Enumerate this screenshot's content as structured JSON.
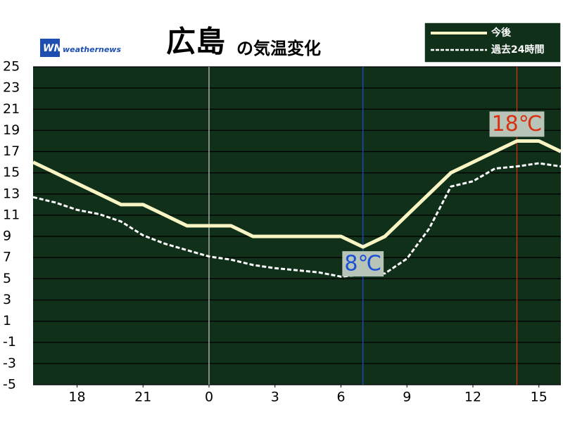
{
  "chart_data": {
    "type": "line",
    "title": "広島",
    "subtitle": "の気温変化",
    "brand": "weathernews",
    "x": [
      16,
      17,
      18,
      19,
      20,
      21,
      22,
      23,
      24,
      25,
      26,
      27,
      28,
      29,
      30,
      31,
      32,
      33,
      34,
      35,
      36,
      37,
      38,
      39,
      40
    ],
    "series": [
      {
        "name": "今後",
        "color": "#f8f4c4",
        "style": "solid",
        "values": [
          16,
          15,
          14,
          13,
          12,
          12,
          11,
          10,
          10,
          10,
          9,
          9,
          9,
          9,
          9,
          8,
          9,
          11,
          13,
          15,
          16,
          17,
          18,
          18,
          17
        ]
      },
      {
        "name": "過去24時間",
        "color": "#ffffff",
        "style": "dashed",
        "values": [
          12.7,
          12.2,
          11.5,
          11.1,
          10.4,
          9.1,
          8.3,
          7.7,
          7.1,
          6.8,
          6.3,
          6.0,
          5.8,
          5.6,
          5.2,
          5.4,
          5.5,
          6.9,
          9.7,
          13.7,
          14.2,
          15.4,
          15.6,
          15.9,
          15.6
        ]
      }
    ],
    "markers": [
      {
        "x": 24,
        "color": "#cccccc"
      },
      {
        "x": 31,
        "color": "#1a4fd8",
        "label": "8℃"
      },
      {
        "x": 38,
        "color": "#d83010",
        "label": "18℃"
      }
    ],
    "xlim": [
      16,
      40
    ],
    "xticks": [
      18,
      21,
      {
        "value": 24,
        "label": "0"
      },
      {
        "value": 27,
        "label": "3"
      },
      {
        "value": 30,
        "label": "6"
      },
      {
        "value": 33,
        "label": "9"
      },
      {
        "value": 36,
        "label": "12"
      },
      {
        "value": 39,
        "label": "15"
      }
    ],
    "ylim": [
      -5,
      25
    ],
    "yticks": [
      25,
      23,
      21,
      19,
      17,
      15,
      13,
      11,
      9,
      7,
      5,
      3,
      1,
      -1,
      -3,
      -5
    ],
    "grid": true,
    "legend": "top-right",
    "background": "#10301a"
  }
}
